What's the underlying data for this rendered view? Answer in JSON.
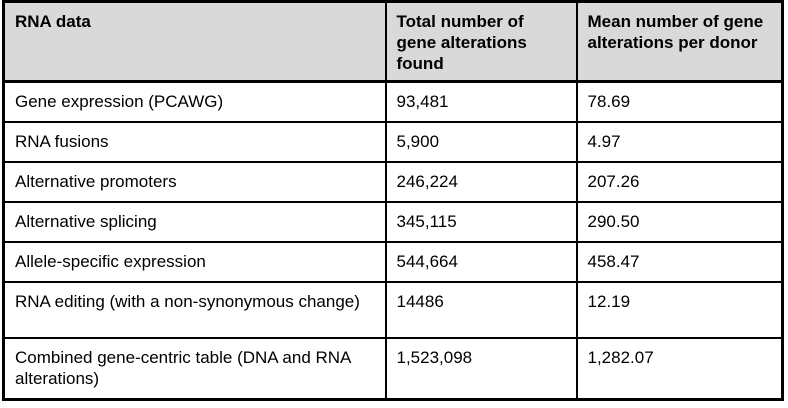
{
  "table": {
    "columns": [
      {
        "label": "RNA data"
      },
      {
        "label": "Total number of gene alterations found"
      },
      {
        "label": "Mean number of gene alterations per donor"
      }
    ],
    "rows": [
      {
        "label": "Gene expression (PCAWG)",
        "total": "93,481",
        "mean": "78.69"
      },
      {
        "label": "RNA fusions",
        "total": "5,900",
        "mean": "4.97"
      },
      {
        "label": "Alternative promoters",
        "total": "246,224",
        "mean": "207.26"
      },
      {
        "label": "Alternative splicing",
        "total": "345,115",
        "mean": "290.50"
      },
      {
        "label": "Allele-specific expression",
        "total": "544,664",
        "mean": "458.47"
      },
      {
        "label": "RNA editing (with a non-synonymous change)",
        "total": "14486",
        "mean": "12.19"
      },
      {
        "label": "Combined gene-centric table (DNA and RNA alterations)",
        "total": "1,523,098",
        "mean": "1,282.07"
      }
    ],
    "colors": {
      "header_bg": "#d9d9d9",
      "border": "#000000",
      "body_bg": "#ffffff",
      "text": "#000000"
    }
  }
}
